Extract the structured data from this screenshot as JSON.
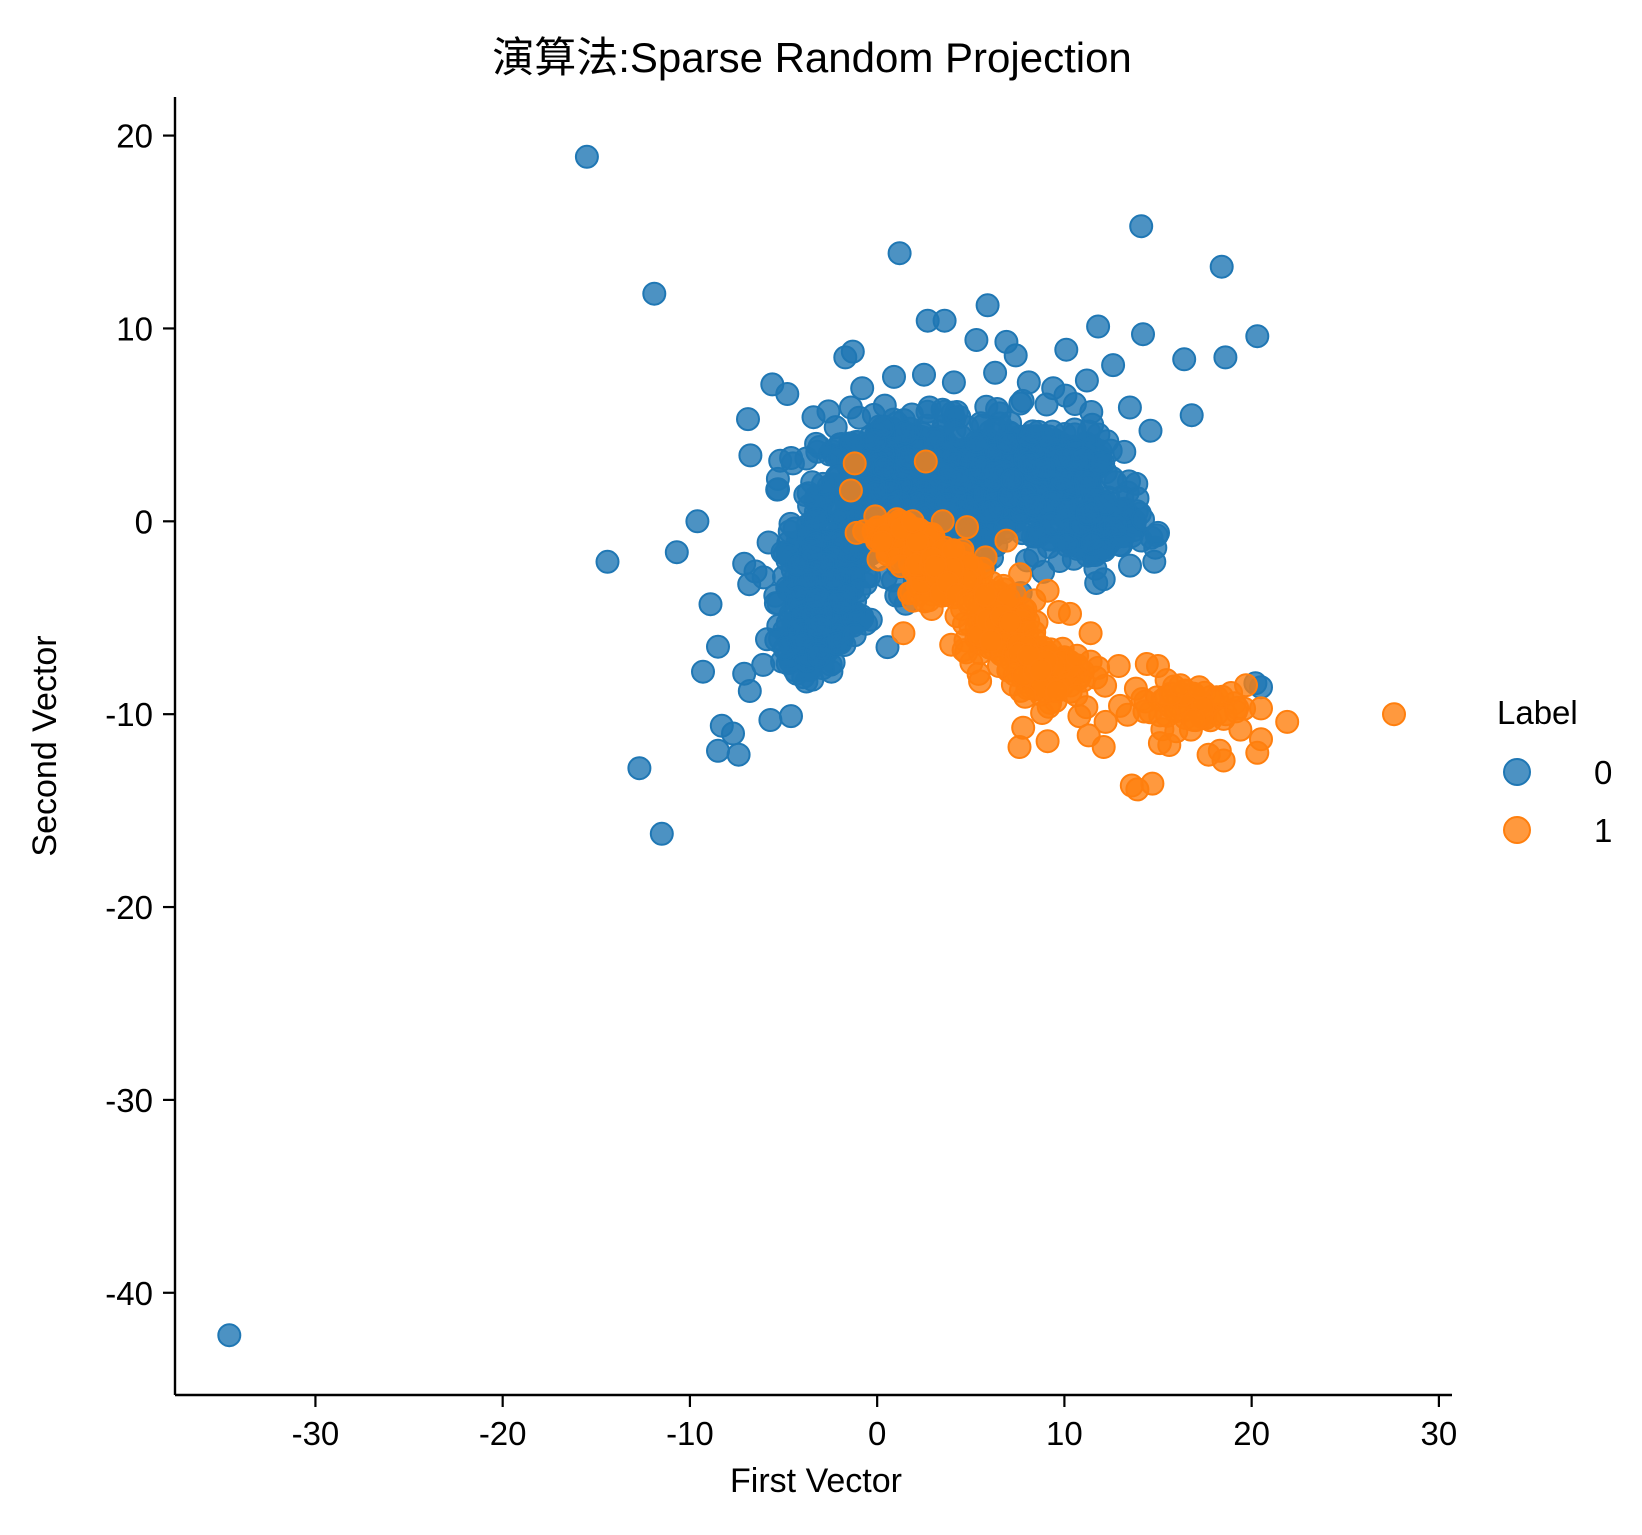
{
  "chart_data": {
    "type": "scatter",
    "title": "演算法:Sparse Random Projection",
    "xlabel": "First Vector",
    "ylabel": "Second Vector",
    "xlim": [
      -37.5,
      30.7
    ],
    "ylim": [
      -45.3,
      22.0
    ],
    "xticks": [
      -30,
      -20,
      -10,
      0,
      10,
      20,
      30
    ],
    "yticks": [
      20,
      10,
      0,
      -10,
      -20,
      -30,
      -40
    ],
    "grid": false,
    "legend": {
      "title": "Label",
      "placement": "right",
      "labels": [
        "0",
        "1"
      ]
    },
    "series": [
      {
        "name": "0",
        "color": "#1f77b4",
        "points": [
          [
            -34.6,
            -42.2
          ],
          [
            -15.5,
            18.9
          ],
          [
            -11.9,
            11.8
          ],
          [
            1.2,
            13.9
          ],
          [
            14.1,
            15.3
          ],
          [
            18.4,
            13.2
          ],
          [
            2.7,
            10.4
          ],
          [
            3.6,
            10.4
          ],
          [
            5.9,
            11.2
          ],
          [
            11.8,
            10.1
          ],
          [
            14.2,
            9.7
          ],
          [
            18.6,
            8.5
          ],
          [
            20.3,
            9.6
          ],
          [
            16.4,
            8.4
          ],
          [
            10.1,
            8.9
          ],
          [
            5.3,
            9.4
          ],
          [
            6.9,
            9.3
          ],
          [
            7.4,
            8.6
          ],
          [
            -1.7,
            8.5
          ],
          [
            -1.3,
            8.8
          ],
          [
            -5.6,
            7.1
          ],
          [
            -4.8,
            6.6
          ],
          [
            -0.8,
            6.9
          ],
          [
            2.5,
            7.6
          ],
          [
            4.1,
            7.2
          ],
          [
            6.3,
            7.7
          ],
          [
            8.1,
            7.2
          ],
          [
            9.4,
            6.9
          ],
          [
            11.2,
            7.3
          ],
          [
            12.6,
            8.1
          ],
          [
            13.5,
            5.9
          ],
          [
            16.8,
            5.5
          ],
          [
            -6.9,
            5.3
          ],
          [
            -3.4,
            5.4
          ],
          [
            -2.6,
            5.7
          ],
          [
            -1.4,
            5.9
          ],
          [
            14.6,
            4.7
          ],
          [
            13.2,
            3.6
          ],
          [
            -4.5,
            3.0
          ],
          [
            -5.3,
            2.2
          ],
          [
            -9.6,
            0.0
          ],
          [
            -14.4,
            -2.1
          ],
          [
            -10.7,
            -1.6
          ],
          [
            -7.1,
            -2.2
          ],
          [
            -6.5,
            -2.6
          ],
          [
            -8.9,
            -4.3
          ],
          [
            -8.5,
            -6.5
          ],
          [
            -9.3,
            -7.8
          ],
          [
            -7.1,
            -7.9
          ],
          [
            -6.8,
            -8.8
          ],
          [
            -5.7,
            -10.3
          ],
          [
            -4.6,
            -10.1
          ],
          [
            -8.3,
            -10.6
          ],
          [
            -8.5,
            -11.9
          ],
          [
            -7.7,
            -11.0
          ],
          [
            -7.4,
            -12.1
          ],
          [
            -12.7,
            -12.8
          ],
          [
            -11.5,
            -16.2
          ],
          [
            14.2,
            0.1
          ],
          [
            15.0,
            -0.6
          ],
          [
            14.8,
            -2.1
          ],
          [
            12.1,
            -3.0
          ],
          [
            11.7,
            -3.2
          ],
          [
            20.2,
            -8.4
          ],
          [
            20.5,
            -8.6
          ],
          [
            -3.1,
            -7.0
          ],
          [
            -1.2,
            -5.9
          ],
          [
            -2.0,
            -4.2
          ],
          [
            -5.8,
            -1.1
          ]
        ]
      },
      {
        "name": "1",
        "color": "#ff7f0e",
        "points": [
          [
            -1.2,
            3.0
          ],
          [
            2.6,
            3.1
          ],
          [
            -1.4,
            1.6
          ],
          [
            1.9,
            0.0
          ],
          [
            3.5,
            0.0
          ],
          [
            4.8,
            -0.3
          ],
          [
            -1.1,
            -0.6
          ],
          [
            6.9,
            -1.0
          ],
          [
            1.4,
            -5.8
          ],
          [
            8.4,
            -4.1
          ],
          [
            9.1,
            -3.6
          ],
          [
            9.7,
            -4.7
          ],
          [
            10.3,
            -4.8
          ],
          [
            11.4,
            -5.8
          ],
          [
            11.8,
            -7.6
          ],
          [
            12.9,
            -7.5
          ],
          [
            14.4,
            -7.4
          ],
          [
            15.0,
            -7.5
          ],
          [
            16.2,
            -8.5
          ],
          [
            17.2,
            -8.6
          ],
          [
            18.9,
            -8.9
          ],
          [
            19.7,
            -8.5
          ],
          [
            20.5,
            -9.7
          ],
          [
            21.9,
            -10.4
          ],
          [
            27.6,
            -10.0
          ],
          [
            19.4,
            -10.8
          ],
          [
            20.5,
            -11.3
          ],
          [
            20.3,
            -12.0
          ],
          [
            18.3,
            -11.9
          ],
          [
            18.5,
            -12.4
          ],
          [
            17.7,
            -12.1
          ],
          [
            15.6,
            -11.6
          ],
          [
            15.1,
            -11.5
          ],
          [
            13.6,
            -13.7
          ],
          [
            13.9,
            -13.9
          ],
          [
            14.7,
            -13.6
          ],
          [
            12.1,
            -11.7
          ],
          [
            11.3,
            -11.1
          ],
          [
            9.1,
            -11.4
          ],
          [
            7.6,
            -11.7
          ],
          [
            7.8,
            -10.7
          ],
          [
            12.2,
            -10.4
          ],
          [
            14.6,
            -9.9
          ],
          [
            16.9,
            -10.3
          ],
          [
            5.5,
            -8.3
          ],
          [
            6.5,
            -7.5
          ],
          [
            7.9,
            -9.1
          ],
          [
            9.6,
            -8.8
          ],
          [
            10.8,
            -10.1
          ]
        ]
      }
    ],
    "dense_regions": [
      {
        "series": "0",
        "center": [
          2.0,
          1.2
        ],
        "spread": [
          4.2,
          3.2
        ],
        "count": 900
      },
      {
        "series": "0",
        "center": [
          -3.0,
          -3.5
        ],
        "spread": [
          1.7,
          2.5
        ],
        "count": 260
      },
      {
        "series": "0",
        "center": [
          8.5,
          2.5
        ],
        "spread": [
          3.0,
          2.3
        ],
        "count": 300
      },
      {
        "series": "0",
        "center": [
          11.5,
          -0.5
        ],
        "spread": [
          2.0,
          1.4
        ],
        "count": 120
      },
      {
        "series": "0",
        "center": [
          -3.5,
          -6.0
        ],
        "spread": [
          1.3,
          1.6
        ],
        "count": 100
      },
      {
        "series": "1",
        "center": [
          1.5,
          -0.8
        ],
        "spread": [
          1.4,
          0.9
        ],
        "count": 90
      },
      {
        "series": "1",
        "center": [
          3.5,
          -2.6
        ],
        "spread": [
          1.6,
          1.2
        ],
        "count": 160
      },
      {
        "series": "1",
        "center": [
          6.3,
          -5.2
        ],
        "spread": [
          1.4,
          1.5
        ],
        "count": 150
      },
      {
        "series": "1",
        "center": [
          9.0,
          -7.8
        ],
        "spread": [
          1.6,
          1.2
        ],
        "count": 120
      },
      {
        "series": "1",
        "center": [
          16.5,
          -9.5
        ],
        "spread": [
          2.6,
          1.0
        ],
        "count": 60
      }
    ]
  }
}
